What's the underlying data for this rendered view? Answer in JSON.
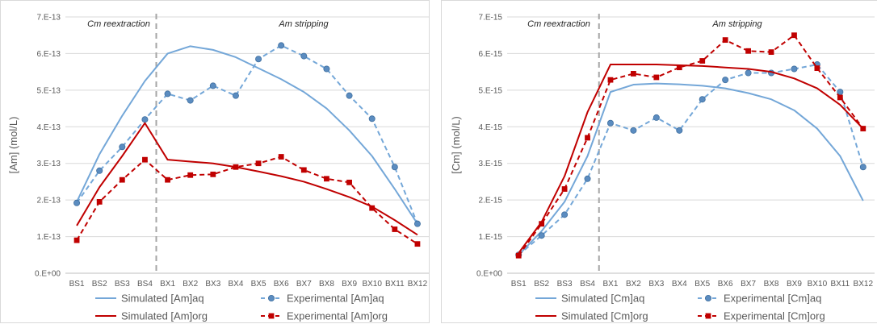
{
  "chart_data": [
    {
      "type": "line",
      "ylabel": "[Am] (mol/L)",
      "xlabel": "",
      "categories": [
        "BS1",
        "BS2",
        "BS3",
        "BS4",
        "BX1",
        "BX2",
        "BX3",
        "BX4",
        "BX5",
        "BX6",
        "BX7",
        "BX8",
        "BX9",
        "BX10",
        "BX11",
        "BX12"
      ],
      "ylim": [
        0,
        7e-13
      ],
      "yticks": [
        "0.E+00",
        "1.E-13",
        "2.E-13",
        "3.E-13",
        "4.E-13",
        "5.E-13",
        "6.E-13",
        "7.E-13"
      ],
      "grid": true,
      "legend_position": "bottom",
      "regions": [
        {
          "label": "Cm reextraction"
        },
        {
          "label": "Am stripping"
        }
      ],
      "divider_after_category": "BS4",
      "series": [
        {
          "name": "Simulated [Am]aq",
          "style": "solid",
          "color": "#74a7d8",
          "values": [
            1.95e-13,
            3.25e-13,
            4.3e-13,
            5.25e-13,
            6e-13,
            6.2e-13,
            6.1e-13,
            5.9e-13,
            5.6e-13,
            5.3e-13,
            4.95e-13,
            4.5e-13,
            3.9e-13,
            3.2e-13,
            2.3e-13,
            1.35e-13
          ]
        },
        {
          "name": "Experimental [Am]aq",
          "style": "dashed-circle",
          "color": "#74a7d8",
          "values": [
            1.92e-13,
            2.8e-13,
            3.45e-13,
            4.2e-13,
            4.9e-13,
            4.72e-13,
            5.12e-13,
            4.85e-13,
            5.85e-13,
            6.22e-13,
            5.93e-13,
            5.58e-13,
            4.85e-13,
            4.22e-13,
            2.9e-13,
            1.35e-13
          ]
        },
        {
          "name": "Simulated [Am]org",
          "style": "solid",
          "color": "#c00000",
          "values": [
            1.3e-13,
            2.35e-13,
            3.2e-13,
            4.1e-13,
            3.1e-13,
            3.05e-13,
            3e-13,
            2.9e-13,
            2.78e-13,
            2.65e-13,
            2.5e-13,
            2.3e-13,
            2.08e-13,
            1.82e-13,
            1.45e-13,
            1.05e-13
          ]
        },
        {
          "name": "Experimental [Am]org",
          "style": "dashed-square",
          "color": "#c00000",
          "values": [
            9e-14,
            1.95e-13,
            2.55e-13,
            3.1e-13,
            2.55e-13,
            2.68e-13,
            2.7e-13,
            2.9e-13,
            3e-13,
            3.18e-13,
            2.82e-13,
            2.58e-13,
            2.48e-13,
            1.78e-13,
            1.2e-13,
            8e-14
          ]
        }
      ]
    },
    {
      "type": "line",
      "ylabel": "[Cm] (mol/L)",
      "xlabel": "",
      "categories": [
        "BS1",
        "BS2",
        "BS3",
        "BS4",
        "BX1",
        "BX2",
        "BX3",
        "BX4",
        "BX5",
        "BX6",
        "BX7",
        "BX8",
        "BX9",
        "BX10",
        "BX11",
        "BX12"
      ],
      "ylim": [
        0,
        7e-15
      ],
      "yticks": [
        "0.E+00",
        "1.E-15",
        "2.E-15",
        "3.E-15",
        "4.E-15",
        "5.E-15",
        "6.E-15",
        "7.E-15"
      ],
      "grid": true,
      "legend_position": "bottom",
      "regions": [
        {
          "label": "Cm reextraction"
        },
        {
          "label": "Am stripping"
        }
      ],
      "divider_after_category": "BS4",
      "series": [
        {
          "name": "Simulated [Cm]aq",
          "style": "solid",
          "color": "#74a7d8",
          "values": [
            5e-16,
            1.15e-15,
            1.95e-15,
            3.2e-15,
            4.95e-15,
            5.15e-15,
            5.18e-15,
            5.16e-15,
            5.12e-15,
            5.05e-15,
            4.92e-15,
            4.75e-15,
            4.45e-15,
            3.95e-15,
            3.2e-15,
            1.98e-15
          ]
        },
        {
          "name": "Experimental [Cm]aq",
          "style": "dashed-circle",
          "color": "#74a7d8",
          "values": [
            5e-16,
            1.03e-15,
            1.6e-15,
            2.58e-15,
            4.1e-15,
            3.9e-15,
            4.25e-15,
            3.9e-15,
            4.75e-15,
            5.28e-15,
            5.47e-15,
            5.47e-15,
            5.58e-15,
            5.7e-15,
            4.95e-15,
            2.9e-15
          ]
        },
        {
          "name": "Simulated [Cm]org",
          "style": "solid",
          "color": "#c00000",
          "values": [
            5.5e-16,
            1.4e-15,
            2.65e-15,
            4.4e-15,
            5.7e-15,
            5.7e-15,
            5.7e-15,
            5.68e-15,
            5.66e-15,
            5.62e-15,
            5.58e-15,
            5.5e-15,
            5.32e-15,
            5.05e-15,
            4.6e-15,
            3.95e-15
          ]
        },
        {
          "name": "Experimental [Cm]org",
          "style": "dashed-square",
          "color": "#c00000",
          "values": [
            4.8e-16,
            1.35e-15,
            2.3e-15,
            3.7e-15,
            5.28e-15,
            5.45e-15,
            5.35e-15,
            5.62e-15,
            5.8e-15,
            6.37e-15,
            6.07e-15,
            6.04e-15,
            6.5e-15,
            5.6e-15,
            4.8e-15,
            3.95e-15
          ]
        }
      ]
    }
  ]
}
